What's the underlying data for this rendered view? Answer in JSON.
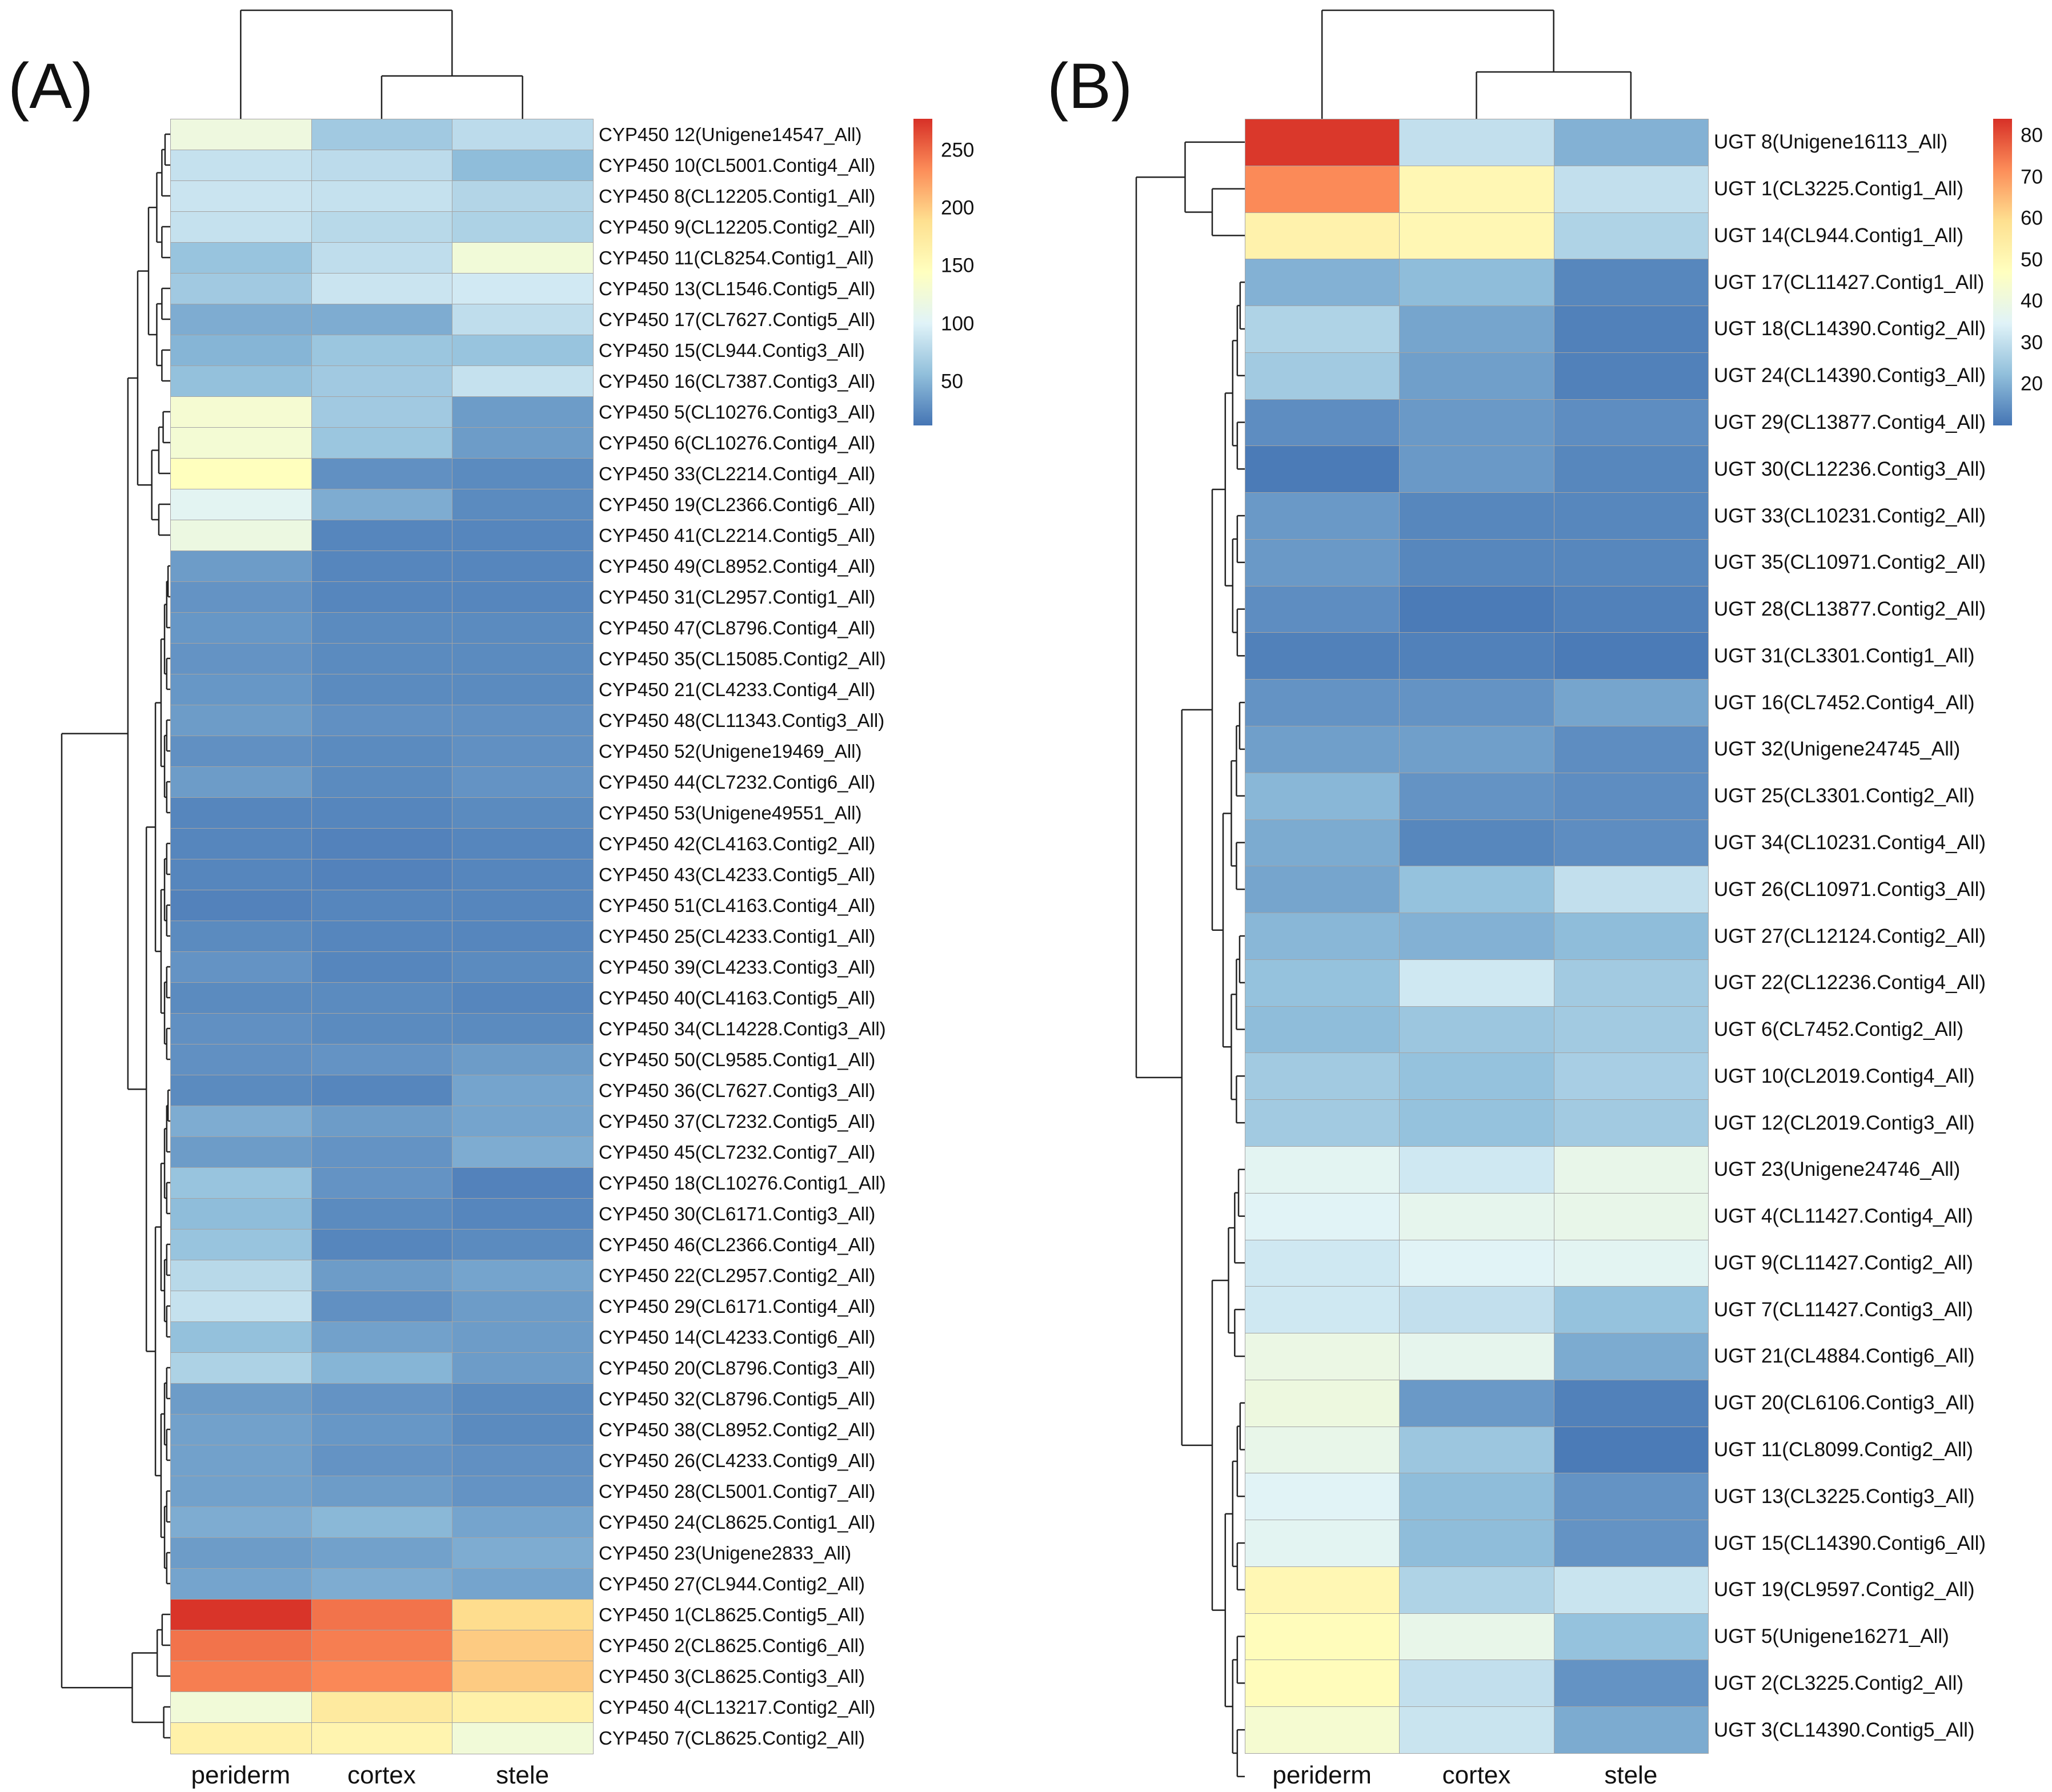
{
  "chart_data": [
    {
      "type": "heatmap",
      "panel_label": "(A)",
      "columns": [
        "periderm",
        "cortex",
        "stele"
      ],
      "color_scale": {
        "min": 12,
        "max": 277,
        "ticks": [
          50,
          100,
          150,
          200,
          250
        ],
        "colors": [
          "#4575B4",
          "#91BFDB",
          "#E0F3F8",
          "#FFFFBF",
          "#FEE090",
          "#FC8D59",
          "#D73027"
        ]
      },
      "rows": [
        {
          "label": "CYP450 12(Unigene14547_All)",
          "values": [
            120,
            65,
            80
          ]
        },
        {
          "label": "CYP450 10(CL5001.Contig4_All)",
          "values": [
            85,
            80,
            55
          ]
        },
        {
          "label": "CYP450 8(CL12205.Contig1_All)",
          "values": [
            88,
            85,
            75
          ]
        },
        {
          "label": "CYP450 9(CL12205.Contig2_All)",
          "values": [
            85,
            78,
            72
          ]
        },
        {
          "label": "CYP450 11(CL8254.Contig1_All)",
          "values": [
            60,
            82,
            125
          ]
        },
        {
          "label": "CYP450 13(CL1546.Contig5_All)",
          "values": [
            65,
            88,
            92
          ]
        },
        {
          "label": "CYP450 17(CL7627.Contig5_All)",
          "values": [
            45,
            45,
            82
          ]
        },
        {
          "label": "CYP450 15(CL944.Contig3_All)",
          "values": [
            50,
            62,
            60
          ]
        },
        {
          "label": "CYP450 16(CL7387.Contig3_All)",
          "values": [
            58,
            65,
            85
          ]
        },
        {
          "label": "CYP450 5(CL10276.Contig3_All)",
          "values": [
            130,
            65,
            35
          ]
        },
        {
          "label": "CYP450 6(CL10276.Contig4_All)",
          "values": [
            128,
            62,
            35
          ]
        },
        {
          "label": "CYP450 33(CL2214.Contig4_All)",
          "values": [
            145,
            28,
            25
          ]
        },
        {
          "label": "CYP450 19(CL2366.Contig6_All)",
          "values": [
            105,
            45,
            25
          ]
        },
        {
          "label": "CYP450 41(CL2214.Contig5_All)",
          "values": [
            118,
            22,
            22
          ]
        },
        {
          "label": "CYP450 49(CL8952.Contig4_All)",
          "values": [
            35,
            22,
            22
          ]
        },
        {
          "label": "CYP450 31(CL2957.Contig1_All)",
          "values": [
            30,
            22,
            22
          ]
        },
        {
          "label": "CYP450 47(CL8796.Contig4_All)",
          "values": [
            32,
            25,
            25
          ]
        },
        {
          "label": "CYP450 35(CL15085.Contig2_All)",
          "values": [
            30,
            25,
            25
          ]
        },
        {
          "label": "CYP450 21(CL4233.Contig4_All)",
          "values": [
            32,
            25,
            25
          ]
        },
        {
          "label": "CYP450 48(CL11343.Contig3_All)",
          "values": [
            35,
            28,
            28
          ]
        },
        {
          "label": "CYP450 52(Unigene19469_All)",
          "values": [
            28,
            25,
            28
          ]
        },
        {
          "label": "CYP450 44(CL7232.Contig6_All)",
          "values": [
            35,
            25,
            30
          ]
        },
        {
          "label": "CYP450 53(Unigene49551_All)",
          "values": [
            22,
            22,
            25
          ]
        },
        {
          "label": "CYP450 42(CL4163.Contig2_All)",
          "values": [
            22,
            20,
            22
          ]
        },
        {
          "label": "CYP450 43(CL4233.Contig5_All)",
          "values": [
            22,
            20,
            22
          ]
        },
        {
          "label": "CYP450 51(CL4163.Contig4_All)",
          "values": [
            20,
            22,
            22
          ]
        },
        {
          "label": "CYP450 25(CL4233.Contig1_All)",
          "values": [
            25,
            22,
            22
          ]
        },
        {
          "label": "CYP450 39(CL4233.Contig3_All)",
          "values": [
            30,
            22,
            25
          ]
        },
        {
          "label": "CYP450 40(CL4163.Contig5_All)",
          "values": [
            25,
            25,
            22
          ]
        },
        {
          "label": "CYP450 34(CL14228.Contig3_All)",
          "values": [
            28,
            25,
            25
          ]
        },
        {
          "label": "CYP450 50(CL9585.Contig1_All)",
          "values": [
            28,
            30,
            35
          ]
        },
        {
          "label": "CYP450 36(CL7627.Contig3_All)",
          "values": [
            25,
            22,
            40
          ]
        },
        {
          "label": "CYP450 37(CL7232.Contig5_All)",
          "values": [
            45,
            35,
            40
          ]
        },
        {
          "label": "CYP450 45(CL7232.Contig7_All)",
          "values": [
            35,
            30,
            45
          ]
        },
        {
          "label": "CYP450 18(CL10276.Contig1_All)",
          "values": [
            60,
            30,
            20
          ]
        },
        {
          "label": "CYP450 30(CL6171.Contig3_All)",
          "values": [
            55,
            25,
            22
          ]
        },
        {
          "label": "CYP450 46(CL2366.Contig4_All)",
          "values": [
            60,
            22,
            25
          ]
        },
        {
          "label": "CYP450 22(CL2957.Contig2_All)",
          "values": [
            78,
            35,
            40
          ]
        },
        {
          "label": "CYP450 29(CL6171.Contig4_All)",
          "values": [
            85,
            28,
            35
          ]
        },
        {
          "label": "CYP450 14(CL4233.Contig6_All)",
          "values": [
            58,
            38,
            35
          ]
        },
        {
          "label": "CYP450 20(CL8796.Contig3_All)",
          "values": [
            72,
            50,
            35
          ]
        },
        {
          "label": "CYP450 32(CL8796.Contig5_All)",
          "values": [
            35,
            30,
            25
          ]
        },
        {
          "label": "CYP450 38(CL8952.Contig2_All)",
          "values": [
            38,
            32,
            25
          ]
        },
        {
          "label": "CYP450 26(CL4233.Contig9_All)",
          "values": [
            38,
            30,
            28
          ]
        },
        {
          "label": "CYP450 28(CL5001.Contig7_All)",
          "values": [
            38,
            35,
            30
          ]
        },
        {
          "label": "CYP450 24(CL8625.Contig1_All)",
          "values": [
            45,
            52,
            40
          ]
        },
        {
          "label": "CYP450 23(Unigene2833_All)",
          "values": [
            35,
            38,
            45
          ]
        },
        {
          "label": "CYP450 27(CL944.Contig2_All)",
          "values": [
            40,
            45,
            40
          ]
        },
        {
          "label": "CYP450 1(CL8625.Contig5_All)",
          "values": [
            275,
            245,
            190
          ]
        },
        {
          "label": "CYP450 2(CL8625.Contig6_All)",
          "values": [
            245,
            240,
            200
          ]
        },
        {
          "label": "CYP450 3(CL8625.Contig3_All)",
          "values": [
            240,
            235,
            200
          ]
        },
        {
          "label": "CYP450 4(CL13217.Contig2_All)",
          "values": [
            125,
            175,
            165
          ]
        },
        {
          "label": "CYP450 7(CL8625.Contig2_All)",
          "values": [
            165,
            160,
            125
          ]
        }
      ]
    },
    {
      "type": "heatmap",
      "panel_label": "(B)",
      "columns": [
        "periderm",
        "cortex",
        "stele"
      ],
      "color_scale": {
        "min": 10,
        "max": 84,
        "ticks": [
          20,
          30,
          40,
          50,
          60,
          70,
          80
        ],
        "colors": [
          "#4575B4",
          "#91BFDB",
          "#E0F3F8",
          "#FFFFBF",
          "#FEE090",
          "#FC8D59",
          "#D73027"
        ]
      },
      "rows": [
        {
          "label": "UGT 8(Unigene16113_All)",
          "values": [
            83,
            30,
            20
          ]
        },
        {
          "label": "UGT 1(CL3225.Contig1_All)",
          "values": [
            72,
            50,
            30
          ]
        },
        {
          "label": "UGT 14(CL944.Contig1_All)",
          "values": [
            52,
            50,
            27
          ]
        },
        {
          "label": "UGT 17(CL11427.Contig1_All)",
          "values": [
            20,
            22,
            13
          ]
        },
        {
          "label": "UGT 18(CL14390.Contig2_All)",
          "values": [
            27,
            18,
            12
          ]
        },
        {
          "label": "UGT 24(CL14390.Contig3_All)",
          "values": [
            25,
            17,
            12
          ]
        },
        {
          "label": "UGT 29(CL13877.Contig4_All)",
          "values": [
            14,
            16,
            14
          ]
        },
        {
          "label": "UGT 30(CL12236.Contig3_All)",
          "values": [
            11,
            16,
            13
          ]
        },
        {
          "label": "UGT 33(CL10231.Contig2_All)",
          "values": [
            16,
            13,
            13
          ]
        },
        {
          "label": "UGT 35(CL10971.Contig2_All)",
          "values": [
            16,
            13,
            13
          ]
        },
        {
          "label": "UGT 28(CL13877.Contig2_All)",
          "values": [
            14,
            11,
            12
          ]
        },
        {
          "label": "UGT 31(CL3301.Contig1_All)",
          "values": [
            12,
            12,
            11
          ]
        },
        {
          "label": "UGT 16(CL7452.Contig4_All)",
          "values": [
            15,
            15,
            18
          ]
        },
        {
          "label": "UGT 32(Unigene24745_All)",
          "values": [
            17,
            17,
            14
          ]
        },
        {
          "label": "UGT 25(CL3301.Contig2_All)",
          "values": [
            21,
            15,
            14
          ]
        },
        {
          "label": "UGT 34(CL10231.Contig4_All)",
          "values": [
            19,
            13,
            14
          ]
        },
        {
          "label": "UGT 26(CL10971.Contig3_All)",
          "values": [
            18,
            23,
            30
          ]
        },
        {
          "label": "UGT 27(CL12124.Contig2_All)",
          "values": [
            21,
            20,
            22
          ]
        },
        {
          "label": "UGT 22(CL12236.Contig4_All)",
          "values": [
            23,
            32,
            25
          ]
        },
        {
          "label": "UGT 6(CL7452.Contig2_All)",
          "values": [
            22,
            24,
            25
          ]
        },
        {
          "label": "UGT 10(CL2019.Contig4_All)",
          "values": [
            25,
            23,
            26
          ]
        },
        {
          "label": "UGT 12(CL2019.Contig3_All)",
          "values": [
            25,
            23,
            25
          ]
        },
        {
          "label": "UGT 23(Unigene24746_All)",
          "values": [
            36,
            32,
            38
          ]
        },
        {
          "label": "UGT 4(CL11427.Contig4_All)",
          "values": [
            35,
            37,
            38
          ]
        },
        {
          "label": "UGT 9(CL11427.Contig2_All)",
          "values": [
            32,
            35,
            36
          ]
        },
        {
          "label": "UGT 7(CL11427.Contig3_All)",
          "values": [
            32,
            30,
            23
          ]
        },
        {
          "label": "UGT 21(CL4884.Contig6_All)",
          "values": [
            39,
            37,
            19
          ]
        },
        {
          "label": "UGT 20(CL6106.Contig3_All)",
          "values": [
            40,
            16,
            12
          ]
        },
        {
          "label": "UGT 11(CL8099.Contig2_All)",
          "values": [
            38,
            24,
            11
          ]
        },
        {
          "label": "UGT 13(CL3225.Contig3_All)",
          "values": [
            35,
            22,
            15
          ]
        },
        {
          "label": "UGT 15(CL14390.Contig6_All)",
          "values": [
            36,
            22,
            15
          ]
        },
        {
          "label": "UGT 19(CL9597.Contig2_All)",
          "values": [
            50,
            27,
            31
          ]
        },
        {
          "label": "UGT 5(Unigene16271_All)",
          "values": [
            48,
            38,
            23
          ]
        },
        {
          "label": "UGT 2(CL3225.Contig2_All)",
          "values": [
            48,
            30,
            15
          ]
        },
        {
          "label": "UGT 3(CL14390.Contig5_All)",
          "values": [
            43,
            31,
            19
          ]
        }
      ]
    }
  ]
}
